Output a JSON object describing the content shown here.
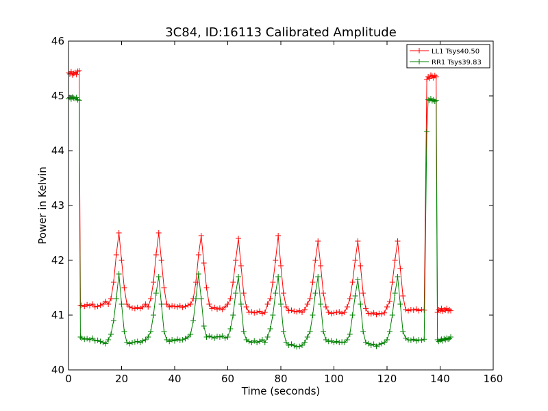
{
  "chart_data": {
    "type": "line",
    "title": "3C84, ID:16113 Calibrated Amplitude",
    "xlabel": "Time (seconds)",
    "ylabel": "Power in Kelvin",
    "xlim": [
      0,
      160
    ],
    "ylim": [
      40,
      46
    ],
    "xticks": [
      "0",
      "20",
      "40",
      "60",
      "80",
      "100",
      "120",
      "140",
      "160"
    ],
    "yticks": [
      "40",
      "41",
      "42",
      "43",
      "44",
      "45",
      "46"
    ],
    "grid": false,
    "legend_position": "top-right",
    "marker": "+",
    "series": [
      {
        "name": "LL1 Tsys40.50",
        "color": "#ff0000",
        "x": [
          0,
          0.5,
          1,
          1.5,
          2,
          2.5,
          3,
          3.5,
          4,
          4.5,
          5,
          6,
          7,
          8,
          9,
          10,
          11,
          12,
          13,
          14,
          15,
          16,
          17,
          18,
          19,
          20,
          21,
          22,
          23,
          24,
          25,
          26,
          27,
          28,
          29,
          30,
          31,
          32,
          33,
          34,
          35,
          36,
          37,
          38,
          39,
          40,
          41,
          42,
          43,
          44,
          45,
          46,
          47,
          48,
          49,
          50,
          51,
          52,
          53,
          54,
          55,
          56,
          57,
          58,
          59,
          60,
          61,
          62,
          63,
          64,
          65,
          66,
          67,
          68,
          69,
          70,
          71,
          72,
          73,
          74,
          75,
          76,
          77,
          78,
          79,
          80,
          81,
          82,
          83,
          84,
          85,
          86,
          87,
          88,
          89,
          90,
          91,
          92,
          93,
          94,
          95,
          96,
          97,
          98,
          99,
          100,
          101,
          102,
          103,
          104,
          105,
          106,
          107,
          108,
          109,
          110,
          111,
          112,
          113,
          114,
          115,
          116,
          117,
          118,
          119,
          120,
          121,
          122,
          123,
          124,
          125,
          126,
          127,
          128,
          129,
          130,
          131,
          132,
          133,
          134,
          135,
          135.5,
          136,
          136.5,
          137,
          137.5,
          138,
          138.5,
          139,
          139.5,
          140,
          140.5,
          141,
          141.5,
          142,
          142.5,
          143,
          143.5,
          144
        ],
        "y": [
          45.42,
          45.4,
          45.44,
          45.38,
          45.41,
          45.43,
          45.39,
          45.45,
          45.46,
          41.17,
          41.18,
          41.16,
          41.19,
          41.17,
          41.2,
          41.15,
          41.16,
          41.18,
          41.2,
          41.25,
          41.2,
          41.3,
          41.6,
          42.1,
          42.5,
          42.0,
          41.5,
          41.2,
          41.15,
          41.13,
          41.12,
          41.14,
          41.12,
          41.15,
          41.2,
          41.15,
          41.3,
          41.6,
          42.1,
          42.5,
          42.0,
          41.5,
          41.2,
          41.15,
          41.17,
          41.16,
          41.15,
          41.17,
          41.14,
          41.16,
          41.18,
          41.2,
          41.3,
          41.6,
          42.1,
          42.45,
          41.95,
          41.5,
          41.2,
          41.12,
          41.14,
          41.11,
          41.13,
          41.1,
          41.15,
          41.2,
          41.3,
          41.6,
          42.0,
          42.4,
          41.9,
          41.4,
          41.15,
          41.05,
          41.06,
          41.04,
          41.05,
          41.07,
          41.03,
          41.05,
          41.2,
          41.3,
          41.6,
          42.0,
          42.45,
          41.9,
          41.4,
          41.15,
          41.08,
          41.09,
          41.07,
          41.06,
          41.08,
          41.05,
          41.1,
          41.2,
          41.3,
          41.6,
          42.0,
          42.35,
          41.9,
          41.4,
          41.15,
          41.05,
          41.03,
          41.04,
          41.05,
          41.06,
          41.03,
          41.05,
          41.15,
          41.3,
          41.6,
          42.0,
          42.35,
          41.9,
          41.4,
          41.12,
          41.03,
          41.02,
          41.04,
          41.01,
          41.03,
          41.02,
          41.04,
          41.15,
          41.25,
          41.6,
          42.0,
          42.35,
          41.85,
          41.35,
          41.1,
          41.08,
          41.1,
          41.09,
          41.11,
          41.08,
          41.1,
          41.09,
          45.3,
          45.35,
          45.32,
          45.38,
          45.36,
          45.33,
          45.37,
          45.35,
          41.05,
          41.1,
          41.08,
          41.12,
          41.07,
          41.1,
          41.09,
          41.12,
          41.08,
          41.1,
          41.08
        ],
        "markers": [
          0,
          0.5,
          1,
          1.5,
          2,
          2.5,
          3,
          3.5,
          4,
          4.5,
          5,
          6,
          7,
          8,
          9,
          10,
          11,
          12,
          13,
          14,
          15,
          16,
          17,
          18,
          19,
          20,
          21,
          22,
          23,
          24,
          25,
          26,
          27,
          28,
          29,
          30,
          31,
          32,
          33,
          34,
          35,
          36,
          37,
          38,
          39,
          40,
          41,
          42,
          43,
          44,
          45,
          46,
          47,
          48,
          49,
          50,
          51,
          52,
          53,
          54,
          55,
          56,
          57,
          58,
          59,
          60,
          61,
          62,
          63,
          64,
          65,
          66,
          67,
          68,
          69,
          70,
          71,
          72,
          73,
          74,
          75,
          76,
          77,
          78,
          79,
          80,
          81,
          82,
          83,
          84,
          85,
          86,
          87,
          88,
          89,
          90,
          91,
          92,
          93,
          94,
          95,
          96,
          97,
          98,
          99,
          100,
          101,
          102,
          103,
          104,
          105,
          106,
          107,
          108,
          109,
          110,
          111,
          112,
          113,
          114,
          115,
          116,
          117,
          118,
          119,
          120,
          121,
          122,
          123,
          124,
          125,
          126,
          127,
          128,
          129,
          130,
          131,
          132,
          133,
          134,
          135,
          135.5,
          136,
          136.5,
          137,
          137.5,
          138,
          138.5,
          139,
          139.5,
          140,
          140.5,
          141,
          141.5,
          142,
          142.5,
          143,
          143.5,
          144
        ]
      },
      {
        "name": "RR1 Tsys39.83",
        "color": "#008000",
        "x": [
          0,
          0.5,
          1,
          1.5,
          2,
          2.5,
          3,
          3.5,
          4,
          4.5,
          5,
          6,
          7,
          8,
          9,
          10,
          11,
          12,
          13,
          14,
          15,
          16,
          17,
          18,
          19,
          20,
          21,
          22,
          23,
          24,
          25,
          26,
          27,
          28,
          29,
          30,
          31,
          32,
          33,
          34,
          35,
          36,
          37,
          38,
          39,
          40,
          41,
          42,
          43,
          44,
          45,
          46,
          47,
          48,
          49,
          50,
          51,
          52,
          53,
          54,
          55,
          56,
          57,
          58,
          59,
          60,
          61,
          62,
          63,
          64,
          65,
          66,
          67,
          68,
          69,
          70,
          71,
          72,
          73,
          74,
          75,
          76,
          77,
          78,
          79,
          80,
          81,
          82,
          83,
          84,
          85,
          86,
          87,
          88,
          89,
          90,
          91,
          92,
          93,
          94,
          95,
          96,
          97,
          98,
          99,
          100,
          101,
          102,
          103,
          104,
          105,
          106,
          107,
          108,
          109,
          110,
          111,
          112,
          113,
          114,
          115,
          116,
          117,
          118,
          119,
          120,
          121,
          122,
          123,
          124,
          125,
          126,
          127,
          128,
          129,
          130,
          131,
          132,
          133,
          134,
          135,
          135.5,
          136,
          136.5,
          137,
          137.5,
          138,
          138.5,
          139,
          139.5,
          140,
          140.5,
          141,
          141.5,
          142,
          142.5,
          143,
          143.5,
          144
        ],
        "y": [
          44.95,
          44.97,
          44.94,
          44.98,
          44.96,
          44.95,
          44.97,
          44.93,
          44.92,
          40.6,
          40.58,
          40.56,
          40.57,
          40.55,
          40.58,
          40.53,
          40.54,
          40.52,
          40.5,
          40.48,
          40.55,
          40.65,
          40.9,
          41.3,
          41.75,
          41.2,
          40.7,
          40.5,
          40.48,
          40.5,
          40.51,
          40.52,
          40.5,
          40.53,
          40.55,
          40.6,
          40.7,
          41.0,
          41.4,
          41.7,
          41.2,
          40.7,
          40.55,
          40.52,
          40.55,
          40.53,
          40.56,
          40.54,
          40.55,
          40.57,
          40.6,
          40.65,
          40.9,
          41.3,
          41.75,
          41.3,
          40.8,
          40.6,
          40.62,
          40.6,
          40.58,
          40.61,
          40.6,
          40.62,
          40.58,
          40.6,
          40.75,
          41.0,
          41.4,
          41.7,
          41.2,
          40.7,
          40.55,
          40.52,
          40.5,
          40.53,
          40.5,
          40.52,
          40.55,
          40.5,
          40.6,
          40.75,
          41.0,
          41.4,
          41.7,
          41.2,
          40.7,
          40.5,
          40.45,
          40.47,
          40.44,
          40.42,
          40.43,
          40.45,
          40.5,
          40.6,
          40.7,
          41.0,
          41.4,
          41.7,
          41.2,
          40.7,
          40.55,
          40.52,
          40.53,
          40.5,
          40.52,
          40.5,
          40.51,
          40.5,
          40.55,
          40.65,
          41.0,
          41.35,
          41.65,
          41.2,
          40.7,
          40.5,
          40.48,
          40.45,
          40.47,
          40.43,
          40.46,
          40.48,
          40.5,
          40.55,
          40.7,
          41.0,
          41.4,
          41.7,
          41.2,
          40.7,
          40.58,
          40.55,
          40.54,
          40.56,
          40.53,
          40.55,
          40.54,
          40.56,
          44.35,
          44.93,
          44.92,
          44.95,
          44.91,
          44.93,
          44.9,
          44.92,
          40.55,
          40.52,
          40.54,
          40.56,
          40.53,
          40.57,
          40.55,
          40.58,
          40.56,
          40.57,
          40.6
        ],
        "markers": [
          0,
          0.5,
          1,
          1.5,
          2,
          2.5,
          3,
          3.5,
          4,
          4.5,
          5,
          6,
          7,
          8,
          9,
          10,
          11,
          12,
          13,
          14,
          15,
          16,
          17,
          18,
          19,
          20,
          21,
          22,
          23,
          24,
          25,
          26,
          27,
          28,
          29,
          30,
          31,
          32,
          33,
          34,
          35,
          36,
          37,
          38,
          39,
          40,
          41,
          42,
          43,
          44,
          45,
          46,
          47,
          48,
          49,
          50,
          51,
          52,
          53,
          54,
          55,
          56,
          57,
          58,
          59,
          60,
          61,
          62,
          63,
          64,
          65,
          66,
          67,
          68,
          69,
          70,
          71,
          72,
          73,
          74,
          75,
          76,
          77,
          78,
          79,
          80,
          81,
          82,
          83,
          84,
          85,
          86,
          87,
          88,
          89,
          90,
          91,
          92,
          93,
          94,
          95,
          96,
          97,
          98,
          99,
          100,
          101,
          102,
          103,
          104,
          105,
          106,
          107,
          108,
          109,
          110,
          111,
          112,
          113,
          114,
          115,
          116,
          117,
          118,
          119,
          120,
          121,
          122,
          123,
          124,
          125,
          126,
          127,
          128,
          129,
          130,
          131,
          132,
          133,
          134,
          135,
          135.5,
          136,
          136.5,
          137,
          137.5,
          138,
          138.5,
          139,
          139.5,
          140,
          140.5,
          141,
          141.5,
          142,
          142.5,
          143,
          143.5,
          144
        ]
      }
    ]
  }
}
